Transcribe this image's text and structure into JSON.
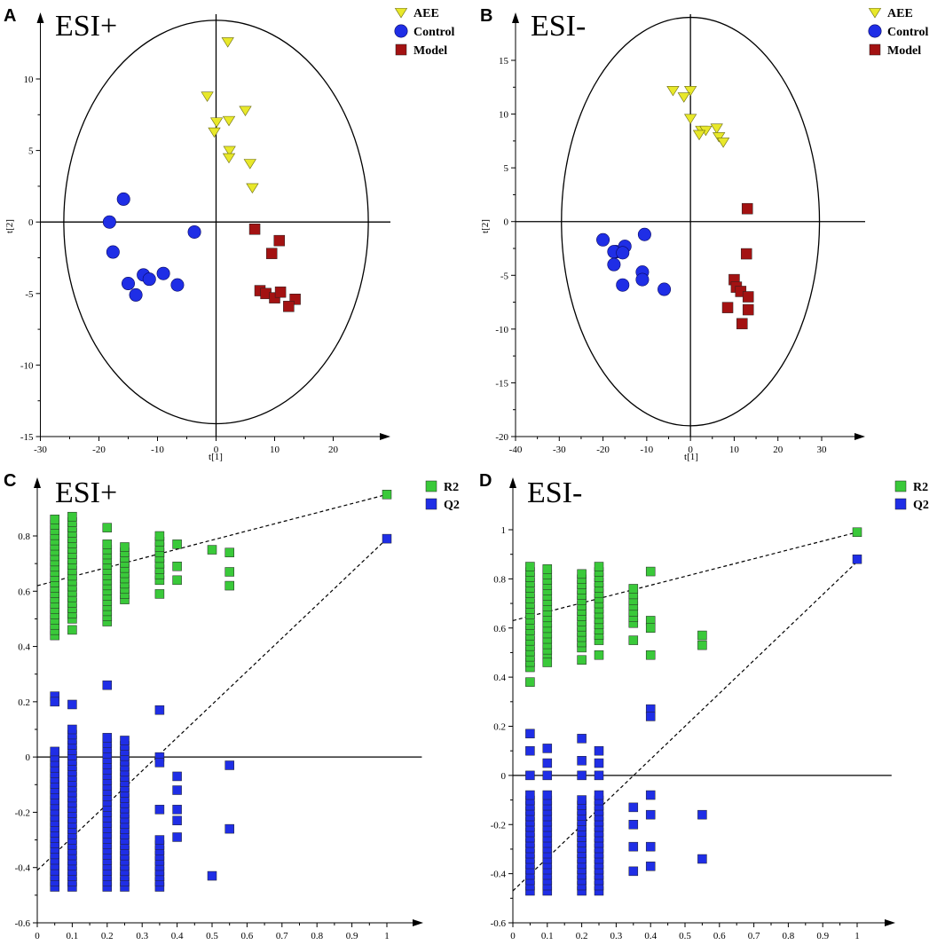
{
  "chart_data": [
    {
      "id": "A",
      "type": "scatter",
      "panel_label": "A",
      "title": "ESI+",
      "xlabel": "t[1]",
      "ylabel": "t[2]",
      "xlim": [
        -30,
        30
      ],
      "ylim": [
        -15,
        15
      ],
      "xticks": [
        -30,
        -20,
        -10,
        0,
        10,
        20
      ],
      "yticks": [
        -15,
        -10,
        -5,
        0,
        5,
        10
      ],
      "ellipse": {
        "cx": 0,
        "cy": 0,
        "rx": 26,
        "ry": 14.1
      },
      "legend": [
        {
          "name": "AEE",
          "marker": "triangle",
          "color": "#e8e82a"
        },
        {
          "name": "Control",
          "marker": "circle",
          "color": "#1f2ee6"
        },
        {
          "name": "Model",
          "marker": "square",
          "color": "#a31212"
        }
      ],
      "series": [
        {
          "name": "AEE",
          "marker": "triangle",
          "color": "#e8e82a",
          "x": [
            2,
            -1.5,
            0.1,
            2.2,
            5,
            -0.3,
            2.3,
            2.2,
            5.8,
            6.2
          ],
          "y": [
            12.6,
            8.8,
            7.0,
            7.1,
            7.8,
            6.3,
            5.0,
            4.5,
            4.1,
            2.4
          ]
        },
        {
          "name": "Control",
          "marker": "circle",
          "color": "#1f2ee6",
          "x": [
            -15.8,
            -18.2,
            -17.6,
            -3.7,
            -15,
            -12.4,
            -11.4,
            -9,
            -6.6,
            -13.7
          ],
          "y": [
            1.6,
            0.0,
            -2.1,
            -0.7,
            -4.3,
            -3.7,
            -4.0,
            -3.6,
            -4.4,
            -5.1
          ]
        },
        {
          "name": "Model",
          "marker": "square",
          "color": "#a31212",
          "x": [
            6.6,
            10.8,
            9.5,
            7.5,
            8.5,
            10,
            11,
            13.5,
            12.4
          ],
          "y": [
            -0.5,
            -1.3,
            -2.2,
            -4.8,
            -5.0,
            -5.3,
            -4.9,
            -5.4,
            -5.9
          ]
        }
      ]
    },
    {
      "id": "B",
      "type": "scatter",
      "panel_label": "B",
      "title": "ESI-",
      "xlabel": "t[1]",
      "ylabel": "t[2]",
      "xlim": [
        -40,
        40
      ],
      "ylim": [
        -20,
        20
      ],
      "xticks": [
        -40,
        -30,
        -20,
        -10,
        0,
        10,
        20,
        30
      ],
      "yticks": [
        -20,
        -15,
        -10,
        -5,
        0,
        5,
        10,
        15
      ],
      "ellipse": {
        "cx": 0,
        "cy": 0,
        "rx": 29.5,
        "ry": 19
      },
      "legend": [
        {
          "name": "AEE",
          "marker": "triangle",
          "color": "#e8e82a"
        },
        {
          "name": "Control",
          "marker": "circle",
          "color": "#1f2ee6"
        },
        {
          "name": "Model",
          "marker": "square",
          "color": "#a31212"
        }
      ],
      "series": [
        {
          "name": "AEE",
          "marker": "triangle",
          "color": "#e8e82a",
          "x": [
            -4,
            0,
            -1.5,
            0,
            2.5,
            3.5,
            6,
            2,
            6.5,
            7.5
          ],
          "y": [
            12.2,
            12.2,
            11.6,
            9.6,
            8.5,
            8.5,
            8.7,
            8.1,
            7.9,
            7.4
          ]
        },
        {
          "name": "Control",
          "marker": "circle",
          "color": "#1f2ee6",
          "x": [
            -20,
            -17,
            -15,
            -10.5,
            -17.5,
            -15.5,
            -17.5,
            -11,
            -11,
            -6,
            -15.5
          ],
          "y": [
            -1.7,
            -2.8,
            -2.3,
            -1.2,
            -2.8,
            -2.9,
            -4.0,
            -4.7,
            -5.4,
            -6.3,
            -5.9
          ]
        },
        {
          "name": "Model",
          "marker": "square",
          "color": "#a31212",
          "x": [
            13,
            12.8,
            10,
            10.5,
            11.5,
            13.2,
            13.2,
            8.5,
            11.8
          ],
          "y": [
            1.2,
            -3.0,
            -5.4,
            -6.1,
            -6.5,
            -7.0,
            -8.2,
            -8.0,
            -9.5
          ]
        }
      ]
    },
    {
      "id": "C",
      "type": "scatter",
      "panel_label": "C",
      "title": "ESI+",
      "xlabel": "",
      "ylabel": "",
      "xlim": [
        0,
        1.1
      ],
      "ylim": [
        -0.6,
        1.0
      ],
      "xticks": [
        0,
        0.1,
        0.2,
        0.3,
        0.4,
        0.5,
        0.6,
        0.7,
        0.8,
        0.9,
        1
      ],
      "yticks": [
        -0.6,
        -0.4,
        -0.2,
        0,
        0.2,
        0.4,
        0.6,
        0.8
      ],
      "legend": [
        {
          "name": "R2",
          "marker": "square",
          "color": "#3ac93a"
        },
        {
          "name": "Q2",
          "marker": "square",
          "color": "#1f2ee6"
        }
      ],
      "series": [
        {
          "name": "R2",
          "marker": "square",
          "color": "#3ac93a",
          "stacks": [
            {
              "x": 0.05,
              "min": 0.44,
              "max": 0.86
            },
            {
              "x": 0.1,
              "min": 0.5,
              "max": 0.87
            },
            {
              "x": 0.2,
              "min": 0.49,
              "max": 0.77
            },
            {
              "x": 0.25,
              "min": 0.57,
              "max": 0.76
            },
            {
              "x": 0.35,
              "min": 0.64,
              "max": 0.8
            }
          ],
          "x": [
            0.1,
            0.2,
            0.35,
            0.4,
            0.4,
            0.4,
            0.5,
            0.55,
            0.55,
            0.55,
            1.0
          ],
          "y": [
            0.46,
            0.83,
            0.59,
            0.77,
            0.69,
            0.64,
            0.75,
            0.74,
            0.67,
            0.62,
            0.95
          ]
        },
        {
          "name": "Q2",
          "marker": "square",
          "color": "#1f2ee6",
          "stacks": [
            {
              "x": 0.05,
              "min": -0.47,
              "max": 0.02
            },
            {
              "x": 0.1,
              "min": -0.47,
              "max": 0.1
            },
            {
              "x": 0.2,
              "min": -0.47,
              "max": 0.07
            },
            {
              "x": 0.25,
              "min": -0.47,
              "max": 0.06
            },
            {
              "x": 0.35,
              "min": -0.47,
              "max": -0.3
            }
          ],
          "x": [
            0.05,
            0.05,
            0.1,
            0.2,
            0.35,
            0.35,
            0.35,
            0.35,
            0.4,
            0.4,
            0.4,
            0.4,
            0.4,
            0.5,
            0.55,
            0.55,
            1.0
          ],
          "y": [
            0.22,
            0.2,
            0.19,
            0.26,
            0.17,
            0.0,
            -0.02,
            -0.19,
            -0.07,
            -0.12,
            -0.19,
            -0.23,
            -0.29,
            -0.43,
            -0.03,
            -0.26,
            0.79
          ]
        }
      ],
      "regression_lines": [
        {
          "name": "R2",
          "x": [
            0,
            1
          ],
          "y": [
            0.62,
            0.95
          ]
        },
        {
          "name": "Q2",
          "x": [
            0,
            1
          ],
          "y": [
            -0.41,
            0.79
          ]
        }
      ]
    },
    {
      "id": "D",
      "type": "scatter",
      "panel_label": "D",
      "title": "ESI-",
      "xlabel": "",
      "ylabel": "",
      "xlim": [
        0,
        1.1
      ],
      "ylim": [
        -0.6,
        1.1
      ],
      "xticks": [
        0,
        0.1,
        0.2,
        0.3,
        0.4,
        0.5,
        0.6,
        0.7,
        0.8,
        0.9,
        1
      ],
      "yticks": [
        -0.6,
        -0.4,
        -0.2,
        0,
        0.2,
        0.4,
        0.6,
        0.8,
        1
      ],
      "legend": [
        {
          "name": "R2",
          "marker": "square",
          "color": "#3ac93a"
        },
        {
          "name": "Q2",
          "marker": "square",
          "color": "#1f2ee6"
        }
      ],
      "series": [
        {
          "name": "R2",
          "marker": "square",
          "color": "#3ac93a",
          "stacks": [
            {
              "x": 0.05,
              "min": 0.44,
              "max": 0.85
            },
            {
              "x": 0.1,
              "min": 0.49,
              "max": 0.84
            },
            {
              "x": 0.2,
              "min": 0.52,
              "max": 0.82
            },
            {
              "x": 0.25,
              "min": 0.55,
              "max": 0.85
            },
            {
              "x": 0.35,
              "min": 0.62,
              "max": 0.76
            }
          ],
          "x": [
            0.05,
            0.1,
            0.2,
            0.25,
            0.35,
            0.4,
            0.4,
            0.4,
            0.4,
            0.55,
            0.55,
            1.0
          ],
          "y": [
            0.38,
            0.46,
            0.47,
            0.49,
            0.55,
            0.83,
            0.63,
            0.6,
            0.49,
            0.57,
            0.53,
            0.99
          ]
        },
        {
          "name": "Q2",
          "marker": "square",
          "color": "#1f2ee6",
          "stacks": [
            {
              "x": 0.05,
              "min": -0.47,
              "max": -0.08
            },
            {
              "x": 0.1,
              "min": -0.47,
              "max": -0.08
            },
            {
              "x": 0.2,
              "min": -0.47,
              "max": -0.1
            },
            {
              "x": 0.25,
              "min": -0.47,
              "max": -0.08
            }
          ],
          "x": [
            0.05,
            0.05,
            0.05,
            0.1,
            0.1,
            0.1,
            0.2,
            0.2,
            0.2,
            0.25,
            0.25,
            0.25,
            0.35,
            0.35,
            0.35,
            0.35,
            0.4,
            0.4,
            0.4,
            0.4,
            0.4,
            0.4,
            0.55,
            0.55,
            1.0
          ],
          "y": [
            0.17,
            0.1,
            0.0,
            0.11,
            0.05,
            0.0,
            0.15,
            0.06,
            0.0,
            0.1,
            0.05,
            0.0,
            -0.13,
            -0.2,
            -0.29,
            -0.39,
            0.27,
            0.24,
            -0.08,
            -0.16,
            -0.29,
            -0.37,
            -0.16,
            -0.34,
            0.88
          ]
        }
      ],
      "regression_lines": [
        {
          "name": "R2",
          "x": [
            0,
            1
          ],
          "y": [
            0.63,
            0.99
          ]
        },
        {
          "name": "Q2",
          "x": [
            0,
            1
          ],
          "y": [
            -0.47,
            0.87
          ]
        }
      ]
    }
  ]
}
